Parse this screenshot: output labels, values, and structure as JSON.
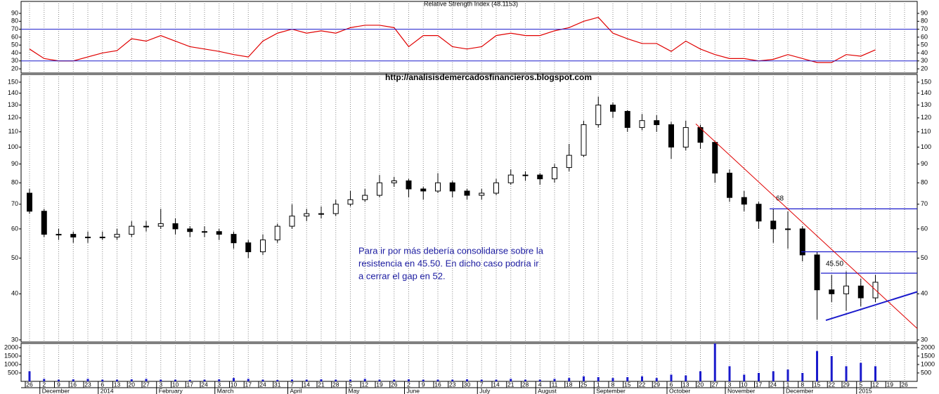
{
  "chart_data": [
    {
      "type": "line",
      "title": "Relative Strength Index (48.1153)",
      "color": "#e00000",
      "values": [
        45,
        33,
        30,
        30,
        35,
        40,
        43,
        58,
        55,
        62,
        55,
        48,
        45,
        42,
        38,
        35,
        55,
        65,
        70,
        65,
        68,
        65,
        72,
        75,
        75,
        72,
        48,
        62,
        62,
        48,
        45,
        48,
        62,
        65,
        62,
        62,
        68,
        72,
        80,
        85,
        65,
        58,
        52,
        52,
        42,
        55,
        45,
        38,
        33,
        33,
        30,
        32,
        38,
        33,
        28,
        28,
        38,
        36,
        44,
        null,
        null
      ],
      "ylim": [
        14.7,
        105.1
      ],
      "yticks": [
        20,
        30,
        40,
        50,
        60,
        70,
        80,
        90
      ],
      "levels": [
        70,
        30
      ],
      "level_color": "#1a1acc",
      "grid": true
    },
    {
      "type": "candlestick",
      "log_scale": true,
      "annotation": "http://analisisdemercadosfinancieros.blogspot.com",
      "comment": [
        "Para ir por más debería consolidarse sobre la",
        "resistencia en 45.50. En dicho caso podría ir",
        "a cerrar el gap en 52."
      ],
      "open": [
        75,
        67,
        58,
        58,
        57,
        57,
        57,
        58,
        61,
        61,
        62,
        60,
        59,
        59,
        58,
        55,
        52,
        56,
        61,
        65,
        66,
        66,
        70,
        72,
        74,
        80,
        81,
        77,
        76,
        80,
        76,
        74,
        75,
        80,
        84,
        84,
        82,
        88,
        95,
        115,
        130,
        125,
        113,
        118,
        115,
        100,
        113,
        103,
        85,
        73,
        70,
        63,
        60,
        60,
        51,
        41,
        40,
        42,
        39,
        null,
        null
      ],
      "high": [
        77,
        68,
        60,
        59,
        59,
        59,
        60,
        63,
        63,
        68,
        64,
        61,
        61,
        60,
        59,
        56,
        58,
        62,
        70,
        68,
        69,
        72,
        76,
        77,
        84,
        83,
        82,
        78,
        85,
        81,
        77,
        77,
        82,
        87,
        86,
        85,
        90,
        102,
        118,
        137,
        132,
        126,
        123,
        122,
        117,
        118,
        115,
        104,
        87,
        76,
        71,
        68,
        67,
        61,
        52,
        45,
        46,
        44,
        45,
        null,
        null
      ],
      "low": [
        66,
        57,
        56,
        55,
        55,
        56,
        56,
        57,
        59,
        60,
        58,
        57,
        57,
        56,
        53,
        50,
        51,
        55,
        60,
        63,
        64,
        65,
        69,
        71,
        73,
        78,
        73,
        72,
        75,
        73,
        72,
        72,
        74,
        79,
        81,
        79,
        80,
        86,
        94,
        113,
        120,
        110,
        111,
        110,
        93,
        98,
        99,
        80,
        71,
        67,
        60,
        55,
        53,
        49,
        34,
        38,
        36,
        37,
        38,
        null,
        null
      ],
      "close": [
        67,
        58,
        58,
        57,
        57,
        57,
        58,
        61,
        61,
        62,
        60,
        59,
        59,
        58,
        55,
        52,
        56,
        61,
        65,
        66,
        66,
        70,
        72,
        74,
        80,
        81,
        77,
        76,
        80,
        76,
        74,
        75,
        80,
        84,
        84,
        82,
        88,
        95,
        115,
        130,
        125,
        113,
        118,
        115,
        100,
        113,
        103,
        85,
        73,
        70,
        63,
        60,
        60,
        51,
        41,
        40,
        42,
        39,
        43,
        null,
        null
      ],
      "ylim": [
        29.6,
        157.4
      ],
      "yticks": [
        30,
        40,
        50,
        60,
        70,
        80,
        90,
        100,
        110,
        120,
        130,
        140,
        150
      ],
      "levels": [
        {
          "value": 68,
          "label": "68"
        },
        52,
        {
          "value": 45.5,
          "label": "45.50"
        }
      ],
      "level_color": "#1a1acc",
      "trendlines": [
        {
          "color": "#e00000",
          "values": [
            115.6,
            32.2
          ]
        },
        {
          "color": "#1a1acc",
          "values": [
            33.9,
            40.5
          ]
        }
      ],
      "grid": true
    },
    {
      "type": "bar",
      "color": "#1a1acc",
      "values": [
        600,
        150,
        100,
        120,
        150,
        100,
        100,
        120,
        150,
        100,
        100,
        80,
        100,
        120,
        200,
        150,
        100,
        80,
        100,
        100,
        120,
        100,
        100,
        150,
        100,
        100,
        120,
        100,
        100,
        100,
        120,
        100,
        100,
        150,
        100,
        100,
        150,
        200,
        300,
        250,
        200,
        250,
        300,
        200,
        400,
        350,
        600,
        2250,
        900,
        400,
        500,
        600,
        700,
        500,
        1800,
        1500,
        900,
        1100,
        900,
        null,
        null
      ],
      "ylim": [
        0,
        2250
      ],
      "yticks": [
        500,
        1000,
        1500,
        2000
      ],
      "grid": true,
      "categories": [
        "26",
        "2",
        "9",
        "16",
        "23",
        "6",
        "13",
        "20",
        "27",
        "3",
        "10",
        "17",
        "24",
        "3",
        "10",
        "17",
        "24",
        "31",
        "7",
        "14",
        "21",
        "28",
        "5",
        "12",
        "19",
        "26",
        "2",
        "9",
        "16",
        "23",
        "30",
        "7",
        "14",
        "21",
        "28",
        "4",
        "11",
        "18",
        "25",
        "1",
        "8",
        "15",
        "22",
        "29",
        "6",
        "13",
        "20",
        "27",
        "3",
        "10",
        "17",
        "24",
        "1",
        "8",
        "15",
        "22",
        "29",
        "5",
        "12",
        "19",
        "26"
      ],
      "months": [
        null,
        "December",
        null,
        null,
        null,
        "2014",
        null,
        null,
        null,
        "February",
        null,
        null,
        null,
        "March",
        null,
        null,
        null,
        null,
        "April",
        null,
        null,
        null,
        "May",
        null,
        null,
        null,
        "June",
        null,
        null,
        null,
        null,
        "July",
        null,
        null,
        null,
        "August",
        null,
        null,
        null,
        "September",
        null,
        null,
        null,
        null,
        "October",
        null,
        null,
        null,
        "November",
        null,
        null,
        null,
        "December",
        null,
        null,
        null,
        null,
        "2015",
        null,
        null,
        null
      ]
    }
  ]
}
